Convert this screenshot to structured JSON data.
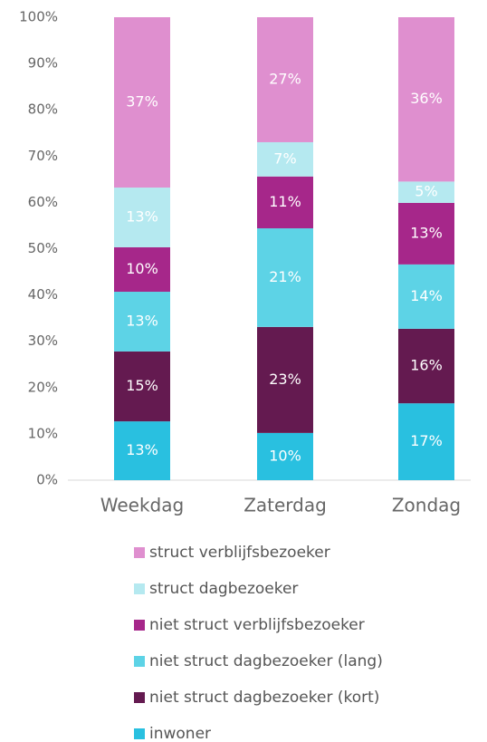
{
  "chart_data": {
    "type": "stacked_bar",
    "categories": [
      "Weekdag",
      "Zaterdag",
      "Zondag"
    ],
    "series": [
      {
        "name": "inwoner",
        "color": "#29c0e0",
        "values": [
          12.7,
          10.2,
          16.6
        ],
        "value_labels": [
          "13%",
          "10%",
          "17%"
        ]
      },
      {
        "name": "niet struct dagbezoeker (kort)",
        "color": "#641a50",
        "values": [
          15.1,
          22.9,
          16.1
        ],
        "value_labels": [
          "15%",
          "23%",
          "16%"
        ]
      },
      {
        "name": "niet struct dagbezoeker (lang)",
        "color": "#5dd3e6",
        "values": [
          12.9,
          21.3,
          13.9
        ],
        "value_labels": [
          "13%",
          "21%",
          "14%"
        ]
      },
      {
        "name": "niet struct verblijfsbezoeker",
        "color": "#a6278a",
        "values": [
          9.6,
          11.2,
          13.3
        ],
        "value_labels": [
          "10%",
          "11%",
          "13%"
        ]
      },
      {
        "name": "struct dagbezoeker",
        "color": "#b5e9f0",
        "values": [
          12.9,
          7.4,
          4.6
        ],
        "value_labels": [
          "13%",
          "7%",
          "5%"
        ]
      },
      {
        "name": "struct verblijfsbezoeker",
        "color": "#df8fcf",
        "values": [
          36.8,
          27.0,
          35.5
        ],
        "value_labels": [
          "37%",
          "27%",
          "36%"
        ]
      }
    ],
    "ylim": [
      0,
      100
    ],
    "yticks": [
      {
        "value": 0,
        "label": "0%"
      },
      {
        "value": 10,
        "label": "10%"
      },
      {
        "value": 20,
        "label": "20%"
      },
      {
        "value": 30,
        "label": "30%"
      },
      {
        "value": 40,
        "label": "40%"
      },
      {
        "value": 50,
        "label": "50%"
      },
      {
        "value": 60,
        "label": "60%"
      },
      {
        "value": 70,
        "label": "70%"
      },
      {
        "value": 80,
        "label": "80%"
      },
      {
        "value": 90,
        "label": "90%"
      },
      {
        "value": 100,
        "label": "100%"
      }
    ],
    "grid": false,
    "legend": "bottom"
  }
}
